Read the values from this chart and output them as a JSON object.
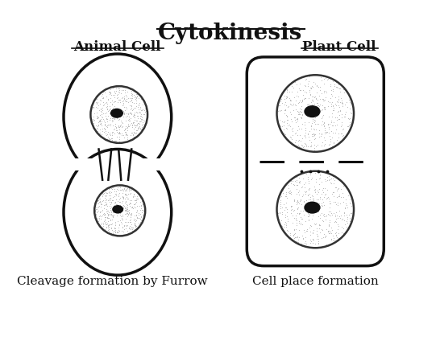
{
  "title": "Cytokinesis",
  "title_fontsize": 20,
  "animal_label": "Animal Cell",
  "plant_label": "Plant Cell",
  "animal_caption": "Cleavage formation by Furrow",
  "plant_caption": "Cell place formation",
  "bg_color": "#ffffff",
  "nucleus_outline": "#333333",
  "line_color": "#111111",
  "label_fontsize": 12,
  "caption_fontsize": 11
}
